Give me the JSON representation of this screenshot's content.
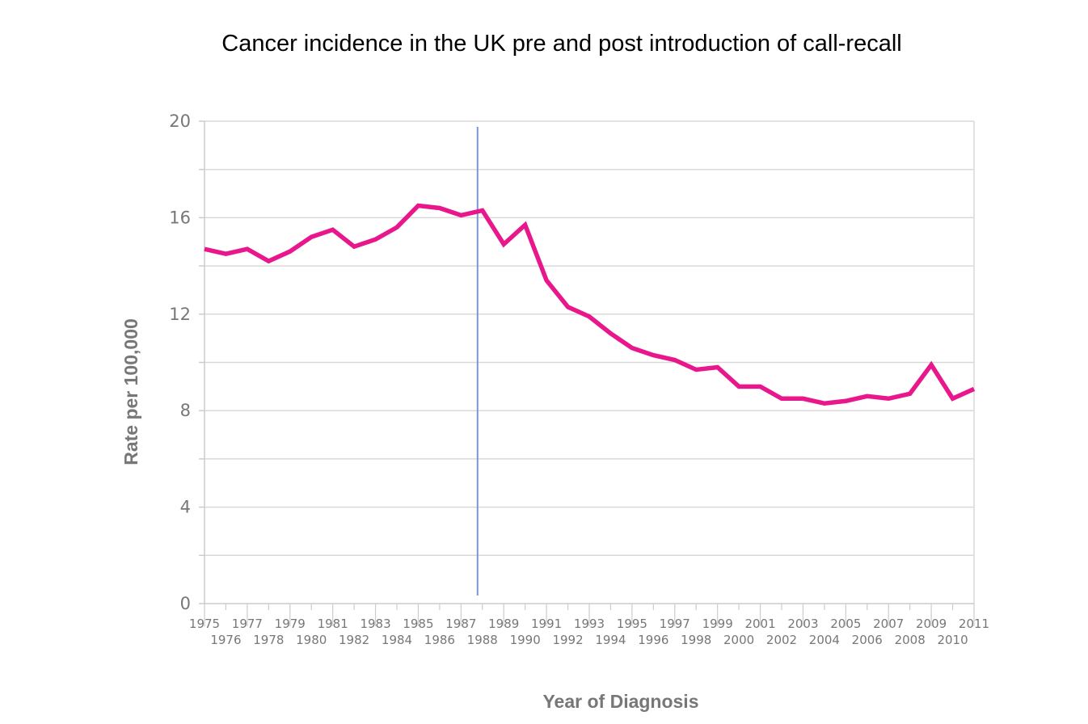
{
  "chart_data": {
    "type": "line",
    "title": "Cancer incidence in the UK pre and post introduction of call-recall",
    "xlabel": "Year of Diagnosis",
    "ylabel": "Rate per 100,000",
    "ylim": [
      0,
      20
    ],
    "yticks": [
      "0",
      "4",
      "8",
      "12",
      "16",
      "20"
    ],
    "grid": true,
    "x": [
      "1975",
      "1976",
      "1977",
      "1978",
      "1979",
      "1980",
      "1981",
      "1982",
      "1983",
      "1984",
      "1985",
      "1986",
      "1987",
      "1988",
      "1989",
      "1990",
      "1991",
      "1992",
      "1993",
      "1994",
      "1995",
      "1996",
      "1997",
      "1998",
      "1999",
      "2000",
      "2001",
      "2002",
      "2003",
      "2004",
      "2005",
      "2006",
      "2007",
      "2008",
      "2009",
      "2010",
      "2011"
    ],
    "series": [
      {
        "color": "#e8178c",
        "values": [
          14.7,
          14.5,
          14.7,
          14.2,
          14.6,
          15.2,
          15.5,
          14.8,
          15.1,
          15.6,
          16.5,
          16.4,
          16.1,
          16.3,
          14.9,
          15.7,
          13.4,
          12.3,
          11.9,
          11.2,
          10.6,
          10.3,
          10.1,
          9.7,
          9.8,
          9.0,
          9.0,
          8.5,
          8.5,
          8.3,
          8.4,
          8.6,
          8.5,
          8.7,
          9.9,
          8.5,
          8.9
        ]
      }
    ],
    "marker_line": {
      "x": "1988",
      "color": "#7b96cf"
    }
  }
}
